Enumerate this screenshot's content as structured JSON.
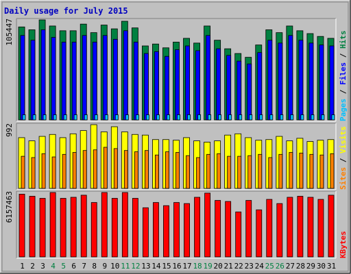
{
  "chart_data": {
    "type": "bar",
    "title": "Daily usage for July 2015",
    "colors": {
      "background": "#c0c0c0",
      "title": "#0000c0",
      "hits": "#008040",
      "files": "#0000ff",
      "pages": "#00c0ff",
      "visits": "#ffff00",
      "sites": "#ff8000",
      "kbytes": "#ff0000",
      "weekend": "#008040",
      "weekday": "#000000"
    },
    "categories": [
      "1",
      "2",
      "3",
      "4",
      "5",
      "6",
      "7",
      "8",
      "9",
      "10",
      "11",
      "12",
      "13",
      "14",
      "15",
      "16",
      "17",
      "18",
      "19",
      "20",
      "21",
      "22",
      "23",
      "24",
      "25",
      "26",
      "27",
      "28",
      "29",
      "30",
      "31"
    ],
    "weekend_days": [
      "4",
      "5",
      "11",
      "12",
      "18",
      "19",
      "25",
      "26"
    ],
    "panels": [
      {
        "id": "top",
        "max_label": "105447",
        "max": 105447,
        "legend": [
          "Pages",
          "Files",
          "Hits"
        ],
        "series": [
          {
            "name": "Hits",
            "values": [
              98000,
              95000,
              105447,
              99000,
              94000,
              94000,
              101000,
              92000,
              100000,
              96000,
              104000,
              97000,
              78000,
              80000,
              76000,
              82000,
              86000,
              81000,
              99000,
              84000,
              75000,
              70000,
              66000,
              79000,
              95000,
              92000,
              99000,
              94000,
              91000,
              88000,
              86000
            ]
          },
          {
            "name": "Files",
            "values": [
              89000,
              84000,
              95000,
              87000,
              82000,
              82000,
              89000,
              82000,
              89000,
              85000,
              94000,
              82000,
              70000,
              72000,
              67000,
              74000,
              78000,
              73000,
              89000,
              75000,
              68000,
              62000,
              59000,
              71000,
              84000,
              81000,
              89000,
              84000,
              81000,
              79000,
              78000
            ]
          },
          {
            "name": "Pages",
            "values": [
              5400,
              5400,
              5400,
              5400,
              5400,
              5400,
              5400,
              5400,
              5400,
              5400,
              5400,
              5400,
              5400,
              5400,
              5400,
              5400,
              5400,
              5400,
              5400,
              5400,
              5400,
              5400,
              5400,
              5400,
              5400,
              5400,
              5400,
              5400,
              5400,
              5400,
              5400
            ]
          }
        ]
      },
      {
        "id": "middle",
        "max_label": "992",
        "max": 992,
        "legend": [
          "Sites",
          "Visits"
        ],
        "series": [
          {
            "name": "Visits",
            "values": [
              790,
              740,
              810,
              840,
              790,
              850,
              900,
              992,
              880,
              960,
              880,
              840,
              830,
              760,
              760,
              750,
              790,
              740,
              720,
              740,
              830,
              850,
              790,
              750,
              760,
              810,
              740,
              780,
              730,
              750,
              760
            ]
          },
          {
            "name": "Sites",
            "values": [
              500,
              480,
              540,
              490,
              530,
              560,
              590,
              600,
              640,
              620,
              590,
              570,
              590,
              520,
              570,
              560,
              510,
              480,
              530,
              540,
              500,
              500,
              510,
              530,
              480,
              530,
              560,
              550,
              530,
              520,
              540
            ]
          }
        ]
      },
      {
        "id": "bottom",
        "max_label": "6157463",
        "max": 6157463,
        "legend": [
          "KBytes"
        ],
        "series": [
          {
            "name": "KBytes",
            "values": [
              6000000,
              5800000,
              5600000,
              6157463,
              5600000,
              5700000,
              5900000,
              5200000,
              6157463,
              5600000,
              6157463,
              5600000,
              4700000,
              5200000,
              4900000,
              5200000,
              5100000,
              5700000,
              6100000,
              5400000,
              5300000,
              4300000,
              5400000,
              4500000,
              5500000,
              5100000,
              5700000,
              5800000,
              5700000,
              5500000,
              5900000
            ]
          }
        ]
      }
    ]
  }
}
